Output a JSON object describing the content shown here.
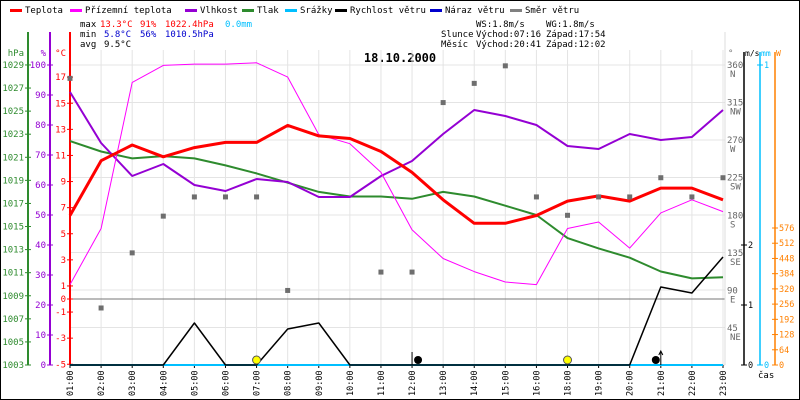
{
  "legend": [
    {
      "label": "Teplota",
      "color": "#ff0000"
    },
    {
      "label": "Přízemní teplota",
      "color": "#ff00ff"
    },
    {
      "label": "Vlhkost",
      "color": "#9400d3"
    },
    {
      "label": "Tlak",
      "color": "#2e8b2e"
    },
    {
      "label": "Srážky",
      "color": "#00bfff"
    },
    {
      "label": "Rychlost větru",
      "color": "#000000"
    },
    {
      "label": "Náraz větru",
      "color": "#0000cd"
    },
    {
      "label": "Směr větru",
      "color": "#808080"
    }
  ],
  "stats": {
    "max_label": "max",
    "max_temp": "13.3°C",
    "max_hum": "91%",
    "max_pres": "1022.4hPa",
    "max_rain": "0.0mm",
    "min_label": "min",
    "min_temp": "5.8°C",
    "min_hum": "56%",
    "min_pres": "1010.5hPa",
    "avg_label": "avg",
    "avg_temp": "9.5°C"
  },
  "wind": {
    "ws": "WS:1.8m/s",
    "wg": "WG:1.8m/s"
  },
  "sun": {
    "label": "Slunce",
    "rise": "Východ:07:16",
    "set": "Západ:17:54"
  },
  "moon": {
    "label": "Měsíc",
    "rise": "Východ:20:41",
    "set": "Západ:12:02"
  },
  "chart_data": {
    "type": "line",
    "title": "18.10.2000",
    "xlabel": "čas",
    "x": [
      "01:00",
      "02:00",
      "03:00",
      "04:00",
      "05:00",
      "06:00",
      "07:00",
      "08:00",
      "09:00",
      "10:00",
      "11:00",
      "12:00",
      "13:00",
      "14:00",
      "15:00",
      "16:00",
      "18:00",
      "19:00",
      "20:00",
      "21:00",
      "22:00",
      "23:00"
    ],
    "series": [
      {
        "name": "Teplota",
        "unit": "°C",
        "values": [
          6.4,
          10.6,
          11.8,
          10.9,
          11.6,
          12.0,
          12.0,
          13.3,
          12.5,
          12.3,
          11.3,
          9.7,
          7.6,
          5.8,
          5.8,
          6.4,
          7.5,
          7.9,
          7.5,
          8.5,
          8.5,
          7.6
        ]
      },
      {
        "name": "Přízemní teplota",
        "unit": "°C",
        "values": [
          1.1,
          5.4,
          16.6,
          17.9,
          18.0,
          18.0,
          18.1,
          17.0,
          12.6,
          11.9,
          9.7,
          5.3,
          3.1,
          2.1,
          1.3,
          1.1,
          5.4,
          5.9,
          3.9,
          6.6,
          7.6,
          6.7
        ]
      },
      {
        "name": "Vlhkost",
        "unit": "%",
        "values": [
          91,
          74,
          63,
          67,
          60,
          58,
          62,
          61,
          56,
          56,
          63,
          68,
          77,
          85,
          83,
          80,
          73,
          72,
          77,
          75,
          76,
          85
        ]
      },
      {
        "name": "Tlak",
        "unit": "hPa",
        "values": [
          1022.4,
          1021.5,
          1020.9,
          1021.1,
          1020.9,
          1020.3,
          1019.6,
          1018.8,
          1018.0,
          1017.6,
          1017.6,
          1017.4,
          1018.0,
          1017.6,
          1016.8,
          1016.0,
          1014.0,
          1013.1,
          1012.3,
          1011.1,
          1010.5,
          1010.6
        ]
      },
      {
        "name": "Srážky",
        "unit": "mm",
        "values": [
          0,
          0,
          0,
          0,
          0,
          0,
          0,
          0,
          0,
          0,
          0,
          0,
          0,
          0,
          0,
          0,
          0,
          0,
          0,
          0,
          0,
          0
        ]
      },
      {
        "name": "Rychlost větru",
        "unit": "m/s",
        "values": [
          0,
          0,
          0,
          0,
          0.7,
          0,
          0,
          0.6,
          0.7,
          0,
          0,
          0,
          0,
          0,
          0,
          0,
          0,
          0,
          0,
          1.3,
          1.2,
          1.8
        ]
      },
      {
        "name": "Směr větru",
        "unit": "°",
        "values": [
          344,
          69,
          135,
          179,
          202,
          202,
          202,
          90,
          null,
          null,
          112,
          112,
          315,
          338,
          359,
          202,
          180,
          202,
          202,
          225,
          202,
          225
        ]
      }
    ],
    "axes": {
      "pressure": {
        "label": "hPa",
        "range": [
          1003,
          1029
        ],
        "ticks": [
          1003,
          1005,
          1007,
          1009,
          1011,
          1013,
          1015,
          1017,
          1019,
          1021,
          1023,
          1025,
          1027,
          1029
        ]
      },
      "humidity": {
        "label": "%",
        "range": [
          0,
          100
        ],
        "ticks": [
          0,
          10,
          20,
          30,
          40,
          50,
          60,
          70,
          80,
          90,
          100
        ]
      },
      "temperature": {
        "label": "°C",
        "range": [
          -5,
          17
        ],
        "ticks": [
          17,
          15,
          13,
          11,
          9,
          7,
          5,
          3,
          1,
          0,
          -1,
          -3,
          -5
        ]
      },
      "direction": {
        "label": "°",
        "range": [
          0,
          360
        ],
        "ticks": [
          {
            "v": 360,
            "t": "360",
            "d": "N"
          },
          {
            "v": 315,
            "t": "315",
            "d": "NW"
          },
          {
            "v": 270,
            "t": "270",
            "d": "W"
          },
          {
            "v": 225,
            "t": "225",
            "d": "SW"
          },
          {
            "v": 180,
            "t": "180",
            "d": "S"
          },
          {
            "v": 135,
            "t": "135",
            "d": "SE"
          },
          {
            "v": 90,
            "t": "90",
            "d": "E"
          },
          {
            "v": 45,
            "t": "45",
            "d": "NE"
          }
        ]
      },
      "wind_speed": {
        "label": "m/s",
        "range": [
          0,
          5
        ],
        "ticks": [
          0,
          1,
          2
        ]
      },
      "rain": {
        "label": "mm",
        "range": [
          0,
          1
        ],
        "ticks": [
          0,
          1
        ]
      },
      "radiation": {
        "label": "W",
        "range": [
          0,
          576
        ],
        "ticks": [
          0,
          64,
          128,
          192,
          256,
          320,
          384,
          448,
          512,
          576
        ]
      }
    },
    "markers": [
      {
        "type": "sun",
        "at": 6
      },
      {
        "type": "moon-set",
        "at": 11
      },
      {
        "type": "sun",
        "at": 16
      },
      {
        "type": "moon-rise",
        "at": 19
      }
    ],
    "grid": true
  }
}
